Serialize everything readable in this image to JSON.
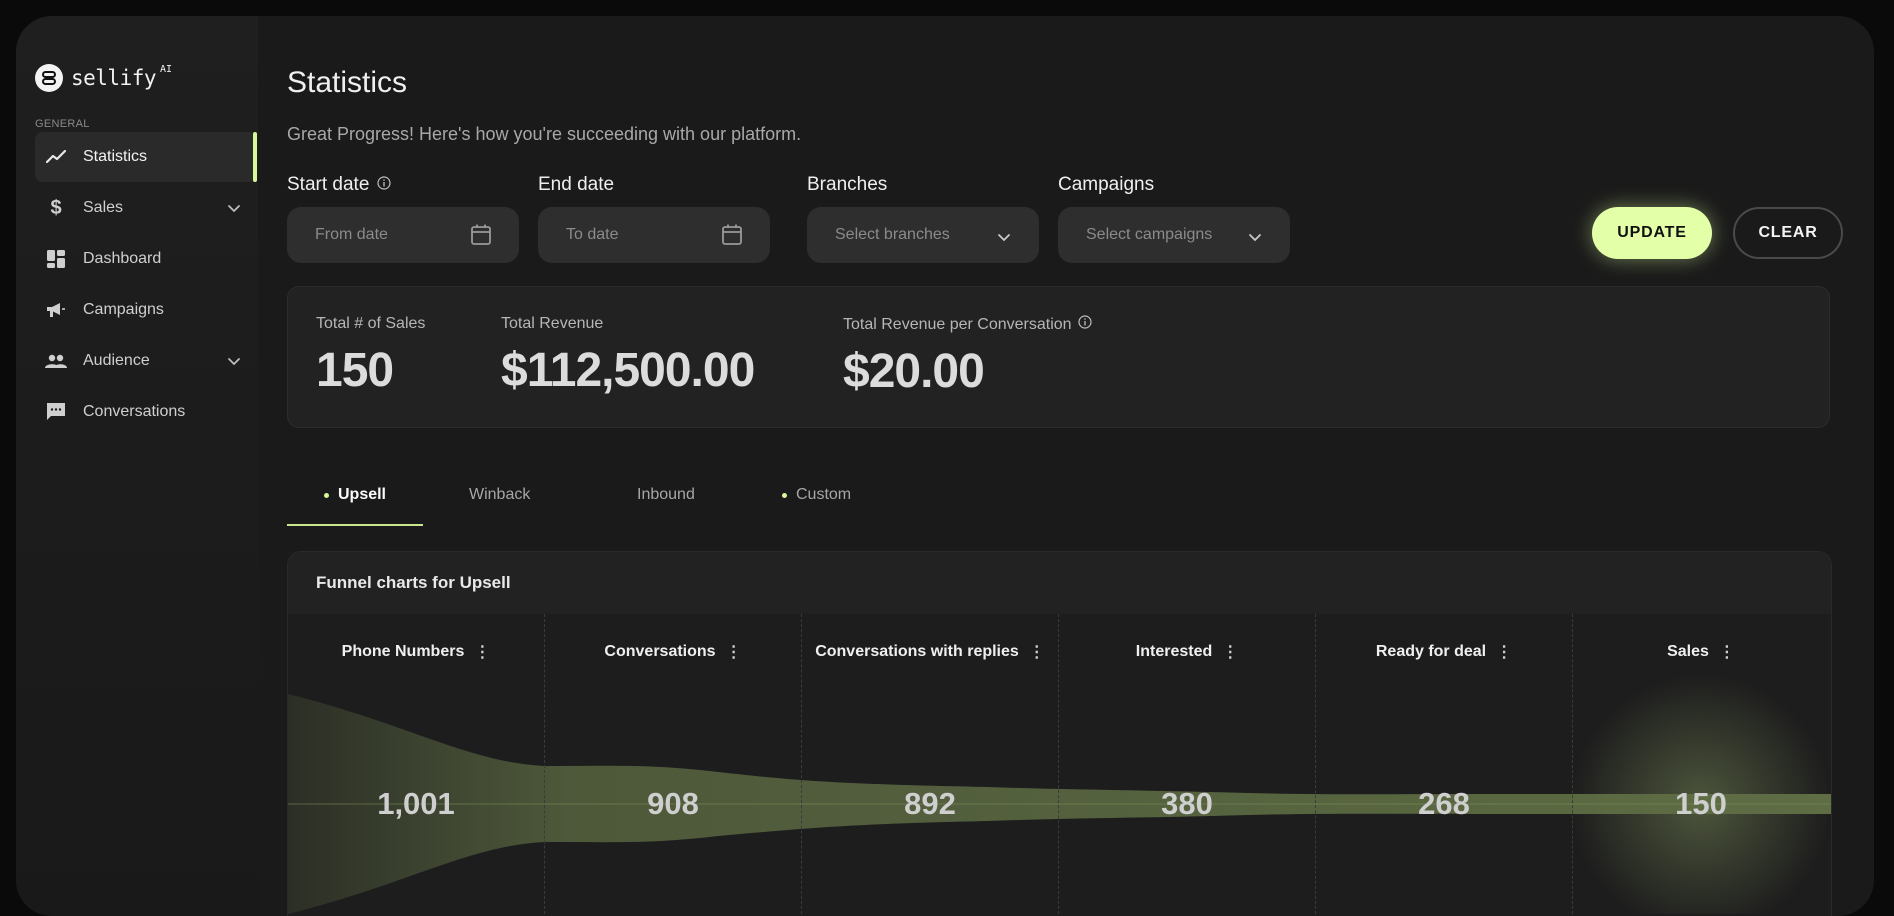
{
  "brand": {
    "name": "sellify",
    "sup": "AI"
  },
  "sidebar": {
    "section": "GENERAL",
    "items": [
      {
        "label": "Statistics",
        "icon": "trend-line-icon",
        "active": true
      },
      {
        "label": "Sales",
        "icon": "dollar-icon",
        "chevron": true
      },
      {
        "label": "Dashboard",
        "icon": "dashboard-icon"
      },
      {
        "label": "Campaigns",
        "icon": "megaphone-icon"
      },
      {
        "label": "Audience",
        "icon": "people-icon",
        "chevron": true
      },
      {
        "label": "Conversations",
        "icon": "chat-icon"
      }
    ]
  },
  "header": {
    "title": "Statistics",
    "subtitle": "Great Progress! Here's how you're succeeding with our platform."
  },
  "filters": {
    "start_label": "Start date",
    "start_placeholder": "From date",
    "end_label": "End date",
    "end_placeholder": "To date",
    "branches_label": "Branches",
    "branches_placeholder": "Select branches",
    "campaigns_label": "Campaigns",
    "campaigns_placeholder": "Select campaigns",
    "update": "UPDATE",
    "clear": "CLEAR"
  },
  "stats": [
    {
      "label": "Total # of Sales",
      "value": "150"
    },
    {
      "label": "Total Revenue",
      "value": "$112,500.00"
    },
    {
      "label": "Total Revenue per Conversation",
      "value": "$20.00",
      "info": true
    }
  ],
  "tabs": [
    {
      "label": "Upsell",
      "active": true,
      "dot": true
    },
    {
      "label": "Winback"
    },
    {
      "label": "Inbound"
    },
    {
      "label": "Custom",
      "dot": true
    }
  ],
  "funnel": {
    "title": "Funnel charts for Upsell",
    "columns": [
      {
        "label": "Phone Numbers",
        "value": "1,001"
      },
      {
        "label": "Conversations",
        "value": "908"
      },
      {
        "label": "Conversations with replies",
        "value": "892"
      },
      {
        "label": "Interested",
        "value": "380"
      },
      {
        "label": "Ready for deal",
        "value": "268"
      },
      {
        "label": "Sales",
        "value": "150"
      }
    ]
  },
  "colors": {
    "accent": "#d6f79a",
    "funnel_fill": "#56633f"
  }
}
